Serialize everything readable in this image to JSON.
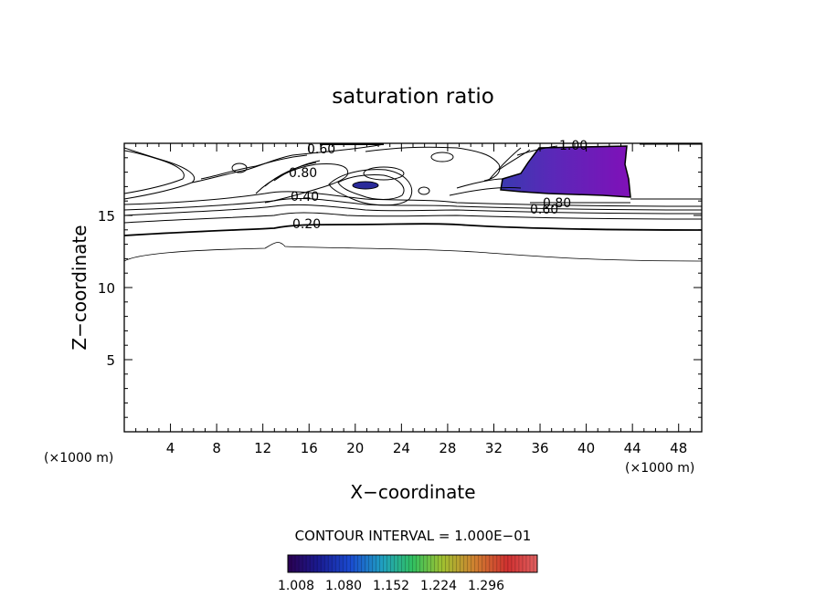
{
  "chart_data": {
    "type": "contour",
    "title": "saturation ratio",
    "xlabel": "X−coordinate",
    "ylabel": "Z−coordinate",
    "x_unit": "(×1000 m)",
    "y_unit": "(×1000 m)",
    "xlim": [
      0,
      50
    ],
    "ylim": [
      0,
      20
    ],
    "x_ticks": [
      4,
      8,
      12,
      16,
      20,
      24,
      28,
      32,
      36,
      40,
      44,
      48
    ],
    "y_ticks": [
      5,
      10,
      15
    ],
    "contour_interval_label": "CONTOUR INTERVAL = 1.000E−01",
    "contour_labels": [
      "0.20",
      "0.40",
      "0.60",
      "0.80",
      "1.00",
      "0.80",
      "0.60"
    ],
    "colorbar": {
      "tick_labels": [
        "1.008",
        "1.080",
        "1.152",
        "1.224",
        "1.296"
      ],
      "colors": [
        "#2a0050",
        "#1a1a90",
        "#1a4ad0",
        "#20a0c0",
        "#30c060",
        "#a0c030",
        "#d08030",
        "#d03030",
        "#e06060"
      ]
    },
    "fill_colors": {
      "supersaturated": "#6a18b0",
      "dark_core": "#2a2a9a"
    }
  }
}
